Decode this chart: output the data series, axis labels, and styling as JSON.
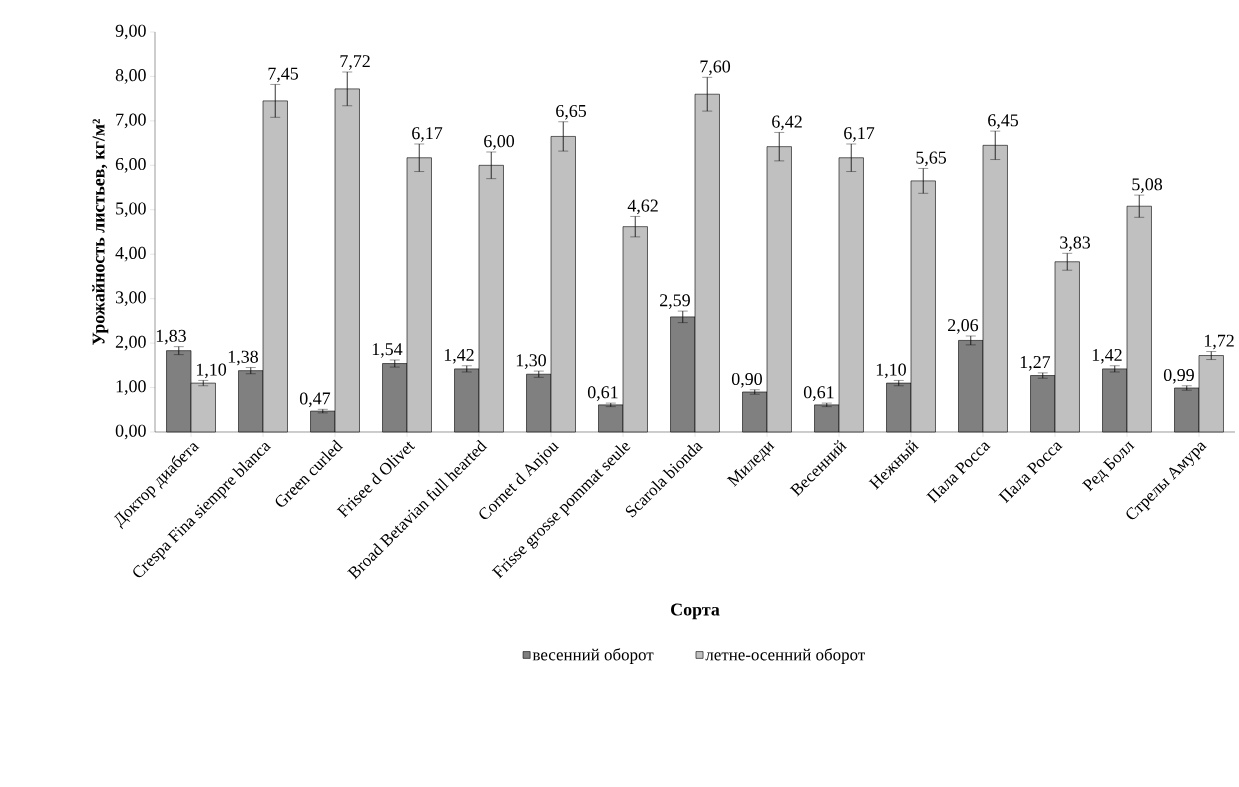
{
  "chart_data": {
    "type": "bar",
    "xlabel": "Сорта",
    "ylabel": "Урожайность листьев, кг/м²",
    "categories": [
      "Доктор диабета",
      "Crespa Fina siempre blanca",
      "Green curled",
      "Frisee d Olivet",
      "Broad Betavian full hearted",
      "Cornet d Anjou",
      "Frisse grosse pommat seule",
      "Scarola bionda",
      "Миледи",
      "Весенний",
      "Нежный",
      "Пала Росса",
      "Пала Росса",
      "Ред Болл",
      "Стрелы Амура"
    ],
    "series": [
      {
        "name": "весенний оборот",
        "color": "#808080",
        "values": [
          1.83,
          1.38,
          0.47,
          1.54,
          1.42,
          1.3,
          0.61,
          2.59,
          0.9,
          0.61,
          1.1,
          2.06,
          1.27,
          1.42,
          0.99
        ],
        "errors": [
          0.09,
          0.07,
          0.04,
          0.08,
          0.07,
          0.07,
          0.04,
          0.13,
          0.05,
          0.04,
          0.06,
          0.1,
          0.06,
          0.07,
          0.05
        ],
        "value_labels": [
          "1,83",
          "1,38",
          "0,47",
          "1,54",
          "1,42",
          "1,30",
          "0,61",
          "2,59",
          "0,90",
          "0,61",
          "1,10",
          "2,06",
          "1,27",
          "1,42",
          "0,99"
        ]
      },
      {
        "name": "летне-осенний оборот",
        "color": "#c0c0c0",
        "values": [
          1.1,
          7.45,
          7.72,
          6.17,
          6.0,
          6.65,
          4.62,
          7.6,
          6.42,
          6.17,
          5.65,
          6.45,
          3.83,
          5.08,
          1.72
        ],
        "errors": [
          0.06,
          0.37,
          0.38,
          0.31,
          0.3,
          0.33,
          0.23,
          0.38,
          0.32,
          0.31,
          0.28,
          0.32,
          0.19,
          0.25,
          0.09
        ],
        "value_labels": [
          "1,10",
          "7,45",
          "7,72",
          "6,17",
          "6,00",
          "6,65",
          "4,62",
          "7,60",
          "6,42",
          "6,17",
          "5,65",
          "6,45",
          "3,83",
          "5,08",
          "1,72"
        ]
      }
    ],
    "ylim": [
      0,
      9
    ],
    "yticks": [
      {
        "value": 0,
        "label": "0,00"
      },
      {
        "value": 1,
        "label": "1,00"
      },
      {
        "value": 2,
        "label": "2,00"
      },
      {
        "value": 3,
        "label": "3,00"
      },
      {
        "value": 4,
        "label": "4,00"
      },
      {
        "value": 5,
        "label": "5,00"
      },
      {
        "value": 6,
        "label": "6,00"
      },
      {
        "value": 7,
        "label": "7,00"
      },
      {
        "value": 8,
        "label": "8,00"
      },
      {
        "value": 9,
        "label": "9,00"
      }
    ],
    "grid": false,
    "legend": "bottom"
  }
}
